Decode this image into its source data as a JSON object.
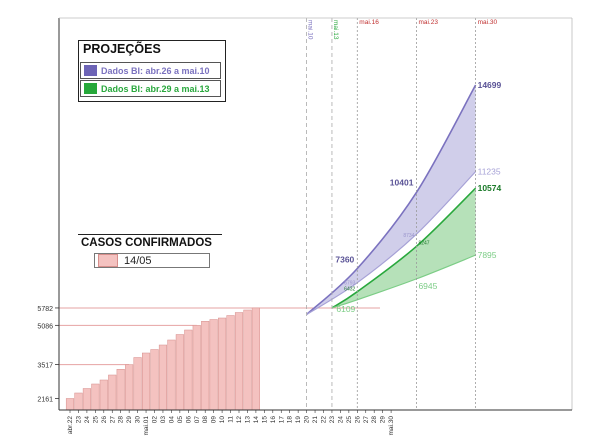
{
  "colors": {
    "purple": "#7b72bf",
    "purple_fill": "#c8c6e6",
    "purple_light": "#a6a1d6",
    "green": "#29a83d",
    "green_fill": "#a9dcad",
    "green_light": "#7ccd86",
    "bar": "#f4c2c0",
    "bar_stroke": "#d68e8b",
    "ref_line": "#e6a3a3",
    "gridline": "#9a9a9a",
    "milestone": "#c03030"
  },
  "projections": {
    "title": "PROJEÇÕES",
    "series": [
      {
        "label": "Dados BI: abr.26 a mai.10",
        "color": "#7b72bf"
      },
      {
        "label": "Dados BI: abr.29 a mai.13",
        "color": "#29a83d"
      }
    ]
  },
  "confirmed": {
    "title": "CASOS CONFIRMADOS",
    "label": "14/05"
  },
  "chart_data": {
    "type": "bar",
    "title": "PROJEÇÕES / CASOS CONFIRMADOS",
    "categories": [
      "abr.22",
      "23",
      "24",
      "25",
      "26",
      "27",
      "28",
      "29",
      "30",
      "mai.01",
      "02",
      "03",
      "04",
      "05",
      "06",
      "07",
      "08",
      "09",
      "10",
      "11",
      "12",
      "13",
      "14",
      "15",
      "16",
      "17",
      "18",
      "19",
      "20",
      "21",
      "22",
      "23",
      "24",
      "25",
      "26",
      "27",
      "28",
      "29",
      "mai.30"
    ],
    "ylim": [
      1700,
      16500
    ],
    "ytick_labels": [
      "2161",
      "3517",
      "5086",
      "5782"
    ],
    "ytick_values": [
      2161,
      3517,
      5086,
      5782
    ],
    "bars": [
      {
        "label": "abr.22",
        "value": 2161
      },
      {
        "label": "23",
        "value": 2380
      },
      {
        "label": "24",
        "value": 2560
      },
      {
        "label": "25",
        "value": 2740
      },
      {
        "label": "26",
        "value": 2900
      },
      {
        "label": "27",
        "value": 3100
      },
      {
        "label": "28",
        "value": 3330
      },
      {
        "label": "29",
        "value": 3517
      },
      {
        "label": "30",
        "value": 3800
      },
      {
        "label": "mai.01",
        "value": 3980
      },
      {
        "label": "02",
        "value": 4120
      },
      {
        "label": "03",
        "value": 4300
      },
      {
        "label": "04",
        "value": 4500
      },
      {
        "label": "05",
        "value": 4720
      },
      {
        "label": "06",
        "value": 4900
      },
      {
        "label": "07",
        "value": 5086
      },
      {
        "label": "08",
        "value": 5250
      },
      {
        "label": "09",
        "value": 5320
      },
      {
        "label": "10",
        "value": 5380
      },
      {
        "label": "11",
        "value": 5480
      },
      {
        "label": "12",
        "value": 5600
      },
      {
        "label": "13",
        "value": 5700
      },
      {
        "label": "14",
        "value": 5782
      }
    ],
    "milestones": [
      {
        "label": "mai.10",
        "day": 10,
        "color": "#7b72bf"
      },
      {
        "label": "mai.13",
        "day": 13,
        "color": "#29a83d"
      },
      {
        "label": "mai.16",
        "day": 16,
        "color": "#c03030"
      },
      {
        "label": "mai.23",
        "day": 23,
        "color": "#c03030"
      },
      {
        "label": "mai.30",
        "day": 30,
        "color": "#c03030"
      }
    ],
    "projection_series": [
      {
        "name": "Dados BI: abr.26 a mai.10",
        "start": {
          "day": 10,
          "value": 5520
        },
        "upper": [
          {
            "day": 16,
            "value": 7360
          },
          {
            "day": 23,
            "value": 10401
          },
          {
            "day": 30,
            "value": 14699
          }
        ],
        "lower": [
          {
            "day": 16,
            "value": 6793
          },
          {
            "day": 23,
            "value": 8734
          },
          {
            "day": 30,
            "value": 11235
          }
        ]
      },
      {
        "name": "Dados BI: abr.29 a mai.13",
        "start": {
          "day": 13,
          "value": 5782
        },
        "upper": [
          {
            "day": 16,
            "value": 6432
          },
          {
            "day": 23,
            "value": 8247
          },
          {
            "day": 30,
            "value": 10574
          }
        ],
        "lower": [
          {
            "day": 16,
            "value": 6109
          },
          {
            "day": 23,
            "value": 6945
          },
          {
            "day": 30,
            "value": 7895
          }
        ]
      }
    ],
    "point_labels": [
      {
        "text": "7360",
        "day": 16,
        "value": 7360,
        "series": 0,
        "emph": "bold",
        "anchor": "end",
        "dx": -3,
        "dy": -6
      },
      {
        "text": "10401",
        "day": 23,
        "value": 10401,
        "series": 0,
        "emph": "bold",
        "anchor": "end",
        "dx": -3,
        "dy": -7
      },
      {
        "text": "14699",
        "day": 30,
        "value": 14699,
        "series": 0,
        "emph": "bold",
        "anchor": "start",
        "dx": 2,
        "dy": 3
      },
      {
        "text": "6793",
        "day": 16,
        "value": 6793,
        "series": 0,
        "emph": "small",
        "anchor": "end",
        "dx": -2,
        "dy": 2
      },
      {
        "text": "8734",
        "day": 23,
        "value": 8734,
        "series": 0,
        "emph": "small",
        "anchor": "end",
        "dx": -2,
        "dy": 3
      },
      {
        "text": "11235",
        "day": 30,
        "value": 11235,
        "series": 0,
        "emph": "light",
        "anchor": "start",
        "dx": 2,
        "dy": 3
      },
      {
        "text": "6432",
        "day": 16,
        "value": 6432,
        "series": 1,
        "emph": "small",
        "anchor": "end",
        "dx": -2,
        "dy": -1
      },
      {
        "text": "8247",
        "day": 23,
        "value": 8247,
        "series": 1,
        "emph": "small",
        "anchor": "start",
        "dx": 2,
        "dy": -2
      },
      {
        "text": "10574",
        "day": 30,
        "value": 10574,
        "series": 1,
        "emph": "bold",
        "anchor": "start",
        "dx": 2,
        "dy": 3
      },
      {
        "text": "6109",
        "day": 16,
        "value": 6109,
        "series": 1,
        "emph": "light",
        "anchor": "end",
        "dx": -2,
        "dy": 12
      },
      {
        "text": "6945",
        "day": 23,
        "value": 6945,
        "series": 1,
        "emph": "light",
        "anchor": "start",
        "dx": 2,
        "dy": 10
      },
      {
        "text": "7895",
        "day": 30,
        "value": 7895,
        "series": 1,
        "emph": "light",
        "anchor": "start",
        "dx": 2,
        "dy": 3
      }
    ]
  }
}
